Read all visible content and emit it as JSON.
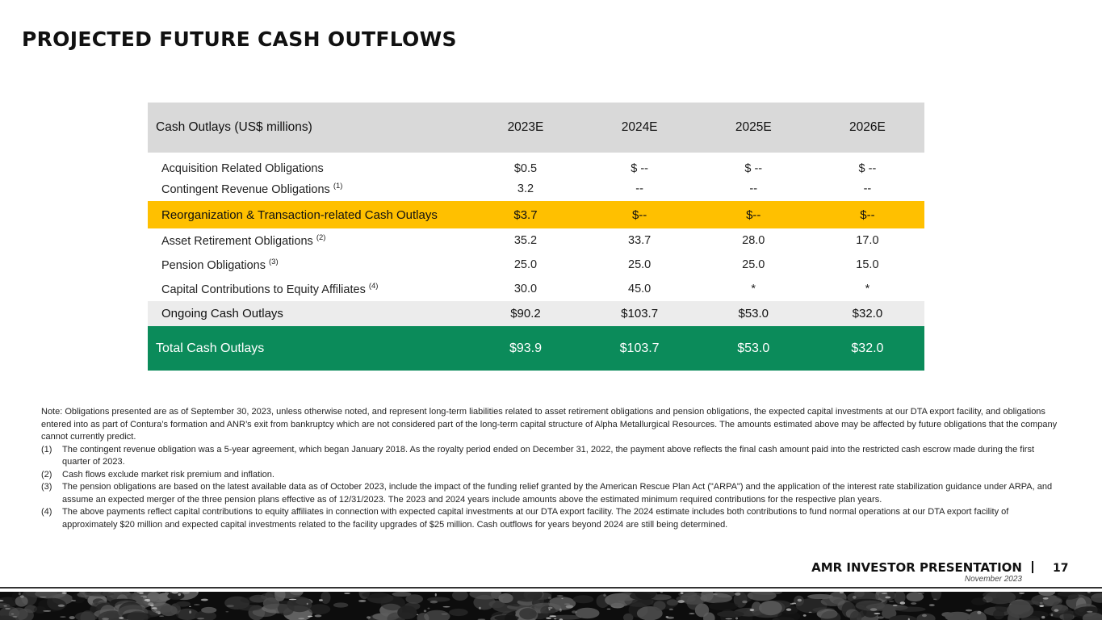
{
  "title": "PROJECTED FUTURE CASH OUTFLOWS",
  "table": {
    "header": [
      "Cash Outlays (US$ millions)",
      "2023E",
      "2024E",
      "2025E",
      "2026E"
    ],
    "rows": [
      {
        "label": "Acquisition Related Obligations",
        "note": "",
        "values": [
          "$0.5",
          "$ --",
          "$ --",
          "$ --"
        ]
      },
      {
        "label": "Contingent Revenue Obligations",
        "note": "(1)",
        "values": [
          "3.2",
          "--",
          "--",
          "--"
        ]
      },
      {
        "label": "Reorganization & Transaction-related Cash Outlays",
        "note": "",
        "values": [
          "$3.7",
          "$--",
          "$--",
          "$--"
        ]
      },
      {
        "label": "Asset Retirement Obligations",
        "note": "(2)",
        "values": [
          "35.2",
          "33.7",
          "28.0",
          "17.0"
        ]
      },
      {
        "label": "Pension Obligations",
        "note": "(3)",
        "values": [
          "25.0",
          "25.0",
          "25.0",
          "15.0"
        ]
      },
      {
        "label": "Capital Contributions to Equity Affiliates",
        "note": "(4)",
        "values": [
          "30.0",
          "45.0",
          "*",
          "*"
        ]
      },
      {
        "label": "Ongoing Cash Outlays",
        "note": "",
        "values": [
          "$90.2",
          "$103.7",
          "$53.0",
          "$32.0"
        ]
      }
    ],
    "total": {
      "label": "Total Cash Outlays",
      "values": [
        "$93.9",
        "$103.7",
        "$53.0",
        "$32.0"
      ]
    },
    "colors": {
      "header_bg": "#d9d9d9",
      "highlight_bg": "#ffc000",
      "ongoing_bg": "#ececec",
      "total_bg": "#0b8b5a"
    }
  },
  "notes": {
    "intro": "Note: Obligations presented are as of September 30, 2023, unless otherwise noted, and represent long-term liabilities related to asset retirement obligations and pension obligations, the expected capital investments at our DTA export facility, and obligations entered into as part of Contura’s formation and ANR’s exit from bankruptcy which are not considered part of the long-term capital structure of Alpha Metallurgical Resources. The amounts estimated above may be affected by future obligations that the company cannot currently predict.",
    "footnotes": [
      {
        "num": "(1)",
        "text": "The contingent revenue obligation was a 5-year agreement, which began January 2018. As the royalty period ended on December 31, 2022, the payment above reflects the final cash amount paid into the restricted cash escrow made during the first quarter of 2023."
      },
      {
        "num": "(2)",
        "text": "Cash flows exclude market risk premium and inflation."
      },
      {
        "num": "(3)",
        "text": "The pension obligations are based on the latest available data as of October 2023, include the impact of the funding relief granted by the American Rescue Plan Act (\"ARPA\") and the application of the interest rate stabilization guidance under ARPA, and assume an expected merger of the three pension plans effective as of 12/31/2023. The 2023 and 2024 years include amounts above the estimated minimum required contributions for the respective plan years."
      },
      {
        "num": "(4)",
        "text": "The above payments reflect capital contributions to equity affiliates in connection with expected capital investments at our DTA export facility. The 2024 estimate includes both contributions to fund normal operations at our DTA export facility of approximately $20 million and expected capital investments related to the facility upgrades of $25 million. Cash outflows for years beyond 2024 are still being determined."
      }
    ]
  },
  "footer": {
    "brand": "AMR INVESTOR PRESENTATION",
    "date": "November 2023",
    "page": "17"
  }
}
